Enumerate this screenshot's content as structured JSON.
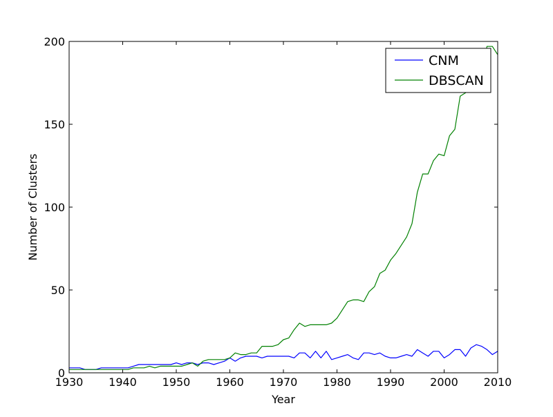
{
  "chart_data": {
    "type": "line",
    "title": "",
    "xlabel": "Year",
    "ylabel": "Number of Clusters",
    "xlim": [
      1930,
      2010
    ],
    "ylim": [
      0,
      200
    ],
    "xticks": [
      1930,
      1940,
      1950,
      1960,
      1970,
      1980,
      1990,
      2000,
      2010
    ],
    "yticks": [
      0,
      50,
      100,
      150,
      200
    ],
    "grid": false,
    "legend": {
      "placement": "top-right"
    },
    "x": [
      1930,
      1931,
      1932,
      1933,
      1934,
      1935,
      1936,
      1937,
      1938,
      1939,
      1940,
      1941,
      1942,
      1943,
      1944,
      1945,
      1946,
      1947,
      1948,
      1949,
      1950,
      1951,
      1952,
      1953,
      1954,
      1955,
      1956,
      1957,
      1958,
      1959,
      1960,
      1961,
      1962,
      1963,
      1964,
      1965,
      1966,
      1967,
      1968,
      1969,
      1970,
      1971,
      1972,
      1973,
      1974,
      1975,
      1976,
      1977,
      1978,
      1979,
      1980,
      1981,
      1982,
      1983,
      1984,
      1985,
      1986,
      1987,
      1988,
      1989,
      1990,
      1991,
      1992,
      1993,
      1994,
      1995,
      1996,
      1997,
      1998,
      1999,
      2000,
      2001,
      2002,
      2003,
      2004,
      2005,
      2006,
      2007,
      2008,
      2009,
      2010
    ],
    "series": [
      {
        "name": "CNM",
        "color": "#0000ff",
        "values": [
          3,
          3,
          3,
          2,
          2,
          2,
          3,
          3,
          3,
          3,
          3,
          3,
          4,
          5,
          5,
          5,
          5,
          5,
          5,
          5,
          6,
          5,
          6,
          6,
          5,
          6,
          6,
          5,
          6,
          7,
          9,
          7,
          9,
          10,
          10,
          10,
          9,
          10,
          10,
          10,
          10,
          10,
          9,
          12,
          12,
          9,
          13,
          9,
          13,
          8,
          9,
          10,
          11,
          9,
          8,
          12,
          12,
          11,
          12,
          10,
          9,
          9,
          10,
          11,
          10,
          14,
          12,
          10,
          13,
          13,
          9,
          11,
          14,
          14,
          10,
          15,
          17,
          16,
          14,
          11,
          13
        ]
      },
      {
        "name": "DBSCAN",
        "color": "#008000",
        "values": [
          2,
          2,
          2,
          2,
          2,
          2,
          2,
          2,
          2,
          2,
          2,
          2,
          3,
          3,
          3,
          4,
          3,
          4,
          4,
          4,
          4,
          4,
          5,
          6,
          4,
          7,
          8,
          8,
          8,
          8,
          9,
          12,
          11,
          11,
          12,
          12,
          16,
          16,
          16,
          17,
          20,
          21,
          26,
          30,
          28,
          29,
          29,
          29,
          29,
          30,
          33,
          38,
          43,
          44,
          44,
          43,
          49,
          52,
          60,
          62,
          68,
          72,
          77,
          82,
          90,
          109,
          120,
          120,
          128,
          132,
          131,
          143,
          147,
          167,
          169,
          172,
          175,
          180,
          197,
          197,
          192
        ]
      }
    ]
  },
  "colors": {
    "axes": "#000000",
    "background": "#ffffff"
  }
}
